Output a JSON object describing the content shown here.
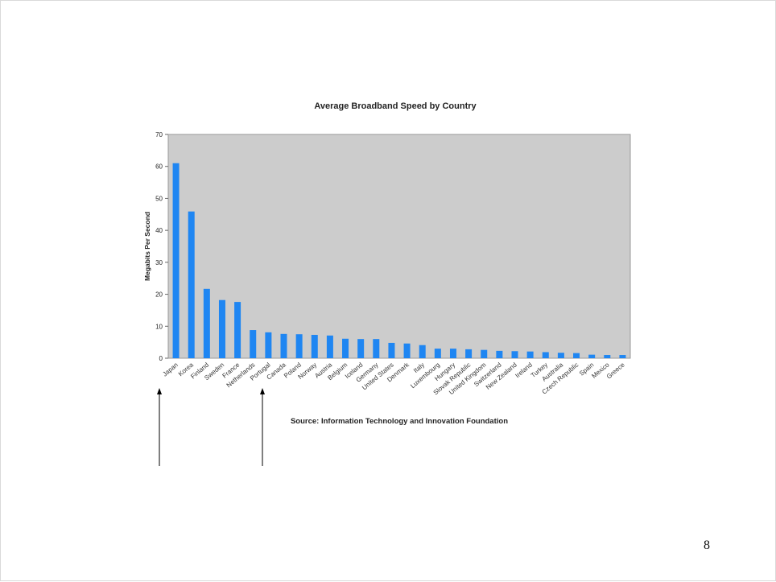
{
  "page": {
    "number": "8"
  },
  "annotations": [
    {
      "name": "arrow-japan",
      "points_to": "Japan"
    },
    {
      "name": "arrow-portugal",
      "points_to": "Portugal"
    }
  ],
  "chart_data": {
    "type": "bar",
    "title": "Average Broadband Speed by Country",
    "source": "Source: Information Technology and Innovation Foundation",
    "xlabel": "",
    "ylabel": "Megabits Per Second",
    "ylim": [
      0,
      70
    ],
    "yticks": [
      0,
      10,
      20,
      30,
      40,
      50,
      60,
      70
    ],
    "grid": false,
    "legend": "none",
    "colors": {
      "bar": "#1f86f2",
      "plot_background": "#cccccc"
    },
    "categories": [
      "Japan",
      "Korea",
      "Finland",
      "Sweden",
      "France",
      "Netherlands",
      "Portugal",
      "Canada",
      "Poland",
      "Norway",
      "Austria",
      "Belgium",
      "Iceland",
      "Germany",
      "United States",
      "Denmark",
      "Italy",
      "Luxembourg",
      "Hungary",
      "Slovak Republic",
      "United Kingdom",
      "Switzerland",
      "New Zealand",
      "Ireland",
      "Turkey",
      "Australia",
      "Czech Republic",
      "Spain",
      "Mexico",
      "Greece"
    ],
    "values": [
      61,
      45.9,
      21.7,
      18.2,
      17.6,
      8.8,
      8.1,
      7.6,
      7.5,
      7.3,
      7.1,
      6.1,
      6.0,
      6.0,
      4.8,
      4.6,
      4.1,
      3.0,
      3.0,
      2.8,
      2.6,
      2.3,
      2.2,
      2.1,
      1.9,
      1.7,
      1.6,
      1.1,
      1.0,
      1.0
    ]
  }
}
